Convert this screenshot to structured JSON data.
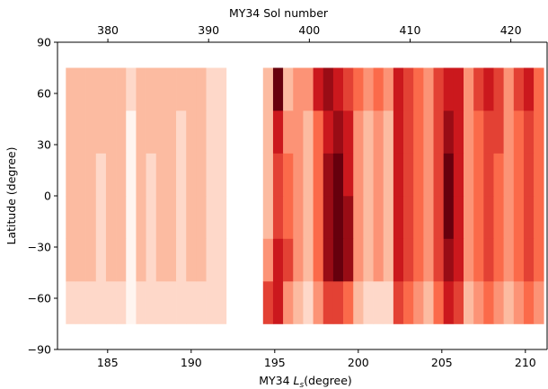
{
  "chart_data": {
    "type": "heatmap",
    "xlabel": {
      "prefix": "MY34",
      "symbol": "L",
      "subscript": "s",
      "suffix": "(degree)"
    },
    "ylabel": "Latitude (degree)",
    "x2label": "MY34 Sol number",
    "colormap": [
      "#fff5f0",
      "#fcbba1",
      "#fb6a4a",
      "#cb181d",
      "#67000d"
    ],
    "xlim": [
      182,
      211.3
    ],
    "xticks": [
      185,
      190,
      195,
      200,
      205,
      210
    ],
    "x2lim": [
      375,
      423.6
    ],
    "x2ticks": [
      380,
      390,
      400,
      410,
      420
    ],
    "ylim": [
      -90,
      90
    ],
    "yticks": [
      {
        "value": -90,
        "label": "−90"
      },
      {
        "value": -60,
        "label": "−60"
      },
      {
        "value": -30,
        "label": "−30"
      },
      0,
      30,
      60,
      90
    ],
    "x": [
      182.8,
      183.4,
      184,
      184.6,
      185.2,
      185.8,
      186.4,
      187,
      187.6,
      188.2,
      188.8,
      189.4,
      190,
      190.6,
      191.2,
      191.8,
      194.6,
      195.2,
      195.8,
      196.4,
      197,
      197.6,
      198.2,
      198.8,
      199.4,
      200,
      200.6,
      201.2,
      201.8,
      202.4,
      203,
      203.6,
      204.2,
      204.8,
      205.4,
      206,
      206.6,
      207.2,
      207.8,
      208.4,
      209,
      209.6,
      210.2,
      210.8
    ],
    "y": [
      -62.5,
      -37.5,
      -12.5,
      12.5,
      37.5,
      62.5
    ],
    "z": [
      [
        1,
        1,
        1,
        1,
        1,
        1,
        0,
        1,
        1,
        1,
        1,
        1,
        1,
        1,
        1,
        1,
        5,
        6,
        3,
        2,
        1,
        3,
        5,
        5,
        4,
        2,
        1,
        1,
        1,
        5,
        4,
        3,
        2,
        4,
        6,
        5,
        2,
        3,
        4,
        3,
        2,
        3,
        4,
        3
      ],
      [
        2,
        2,
        2,
        1,
        2,
        2,
        0,
        2,
        1,
        2,
        2,
        1,
        2,
        2,
        1,
        1,
        3,
        6,
        5,
        3,
        2,
        4,
        7,
        8,
        7,
        3,
        2,
        3,
        2,
        6,
        5,
        4,
        3,
        5,
        7,
        6,
        3,
        4,
        5,
        4,
        3,
        4,
        5,
        4
      ],
      [
        2,
        2,
        2,
        1,
        2,
        2,
        0,
        2,
        1,
        2,
        2,
        1,
        2,
        2,
        1,
        1,
        2,
        5,
        4,
        3,
        2,
        4,
        7,
        8,
        7,
        3,
        2,
        3,
        2,
        6,
        5,
        4,
        3,
        5,
        8,
        6,
        3,
        4,
        5,
        4,
        3,
        4,
        5,
        4
      ],
      [
        2,
        2,
        2,
        1,
        2,
        2,
        0,
        2,
        1,
        2,
        2,
        1,
        2,
        2,
        1,
        1,
        2,
        5,
        4,
        3,
        2,
        4,
        7,
        8,
        6,
        3,
        2,
        3,
        2,
        6,
        5,
        4,
        3,
        5,
        8,
        6,
        3,
        4,
        5,
        4,
        3,
        4,
        5,
        4
      ],
      [
        2,
        2,
        2,
        2,
        2,
        2,
        0,
        2,
        2,
        2,
        2,
        1,
        2,
        2,
        1,
        1,
        2,
        6,
        3,
        3,
        2,
        4,
        6,
        7,
        6,
        3,
        2,
        3,
        2,
        6,
        5,
        4,
        3,
        5,
        7,
        6,
        3,
        4,
        5,
        5,
        3,
        4,
        5,
        4
      ],
      [
        2,
        2,
        2,
        2,
        2,
        2,
        1,
        2,
        2,
        2,
        2,
        2,
        2,
        2,
        1,
        1,
        2,
        8,
        2,
        3,
        3,
        6,
        7,
        6,
        5,
        4,
        3,
        4,
        3,
        6,
        5,
        4,
        3,
        5,
        6,
        6,
        3,
        5,
        6,
        5,
        3,
        5,
        6,
        4
      ]
    ]
  }
}
